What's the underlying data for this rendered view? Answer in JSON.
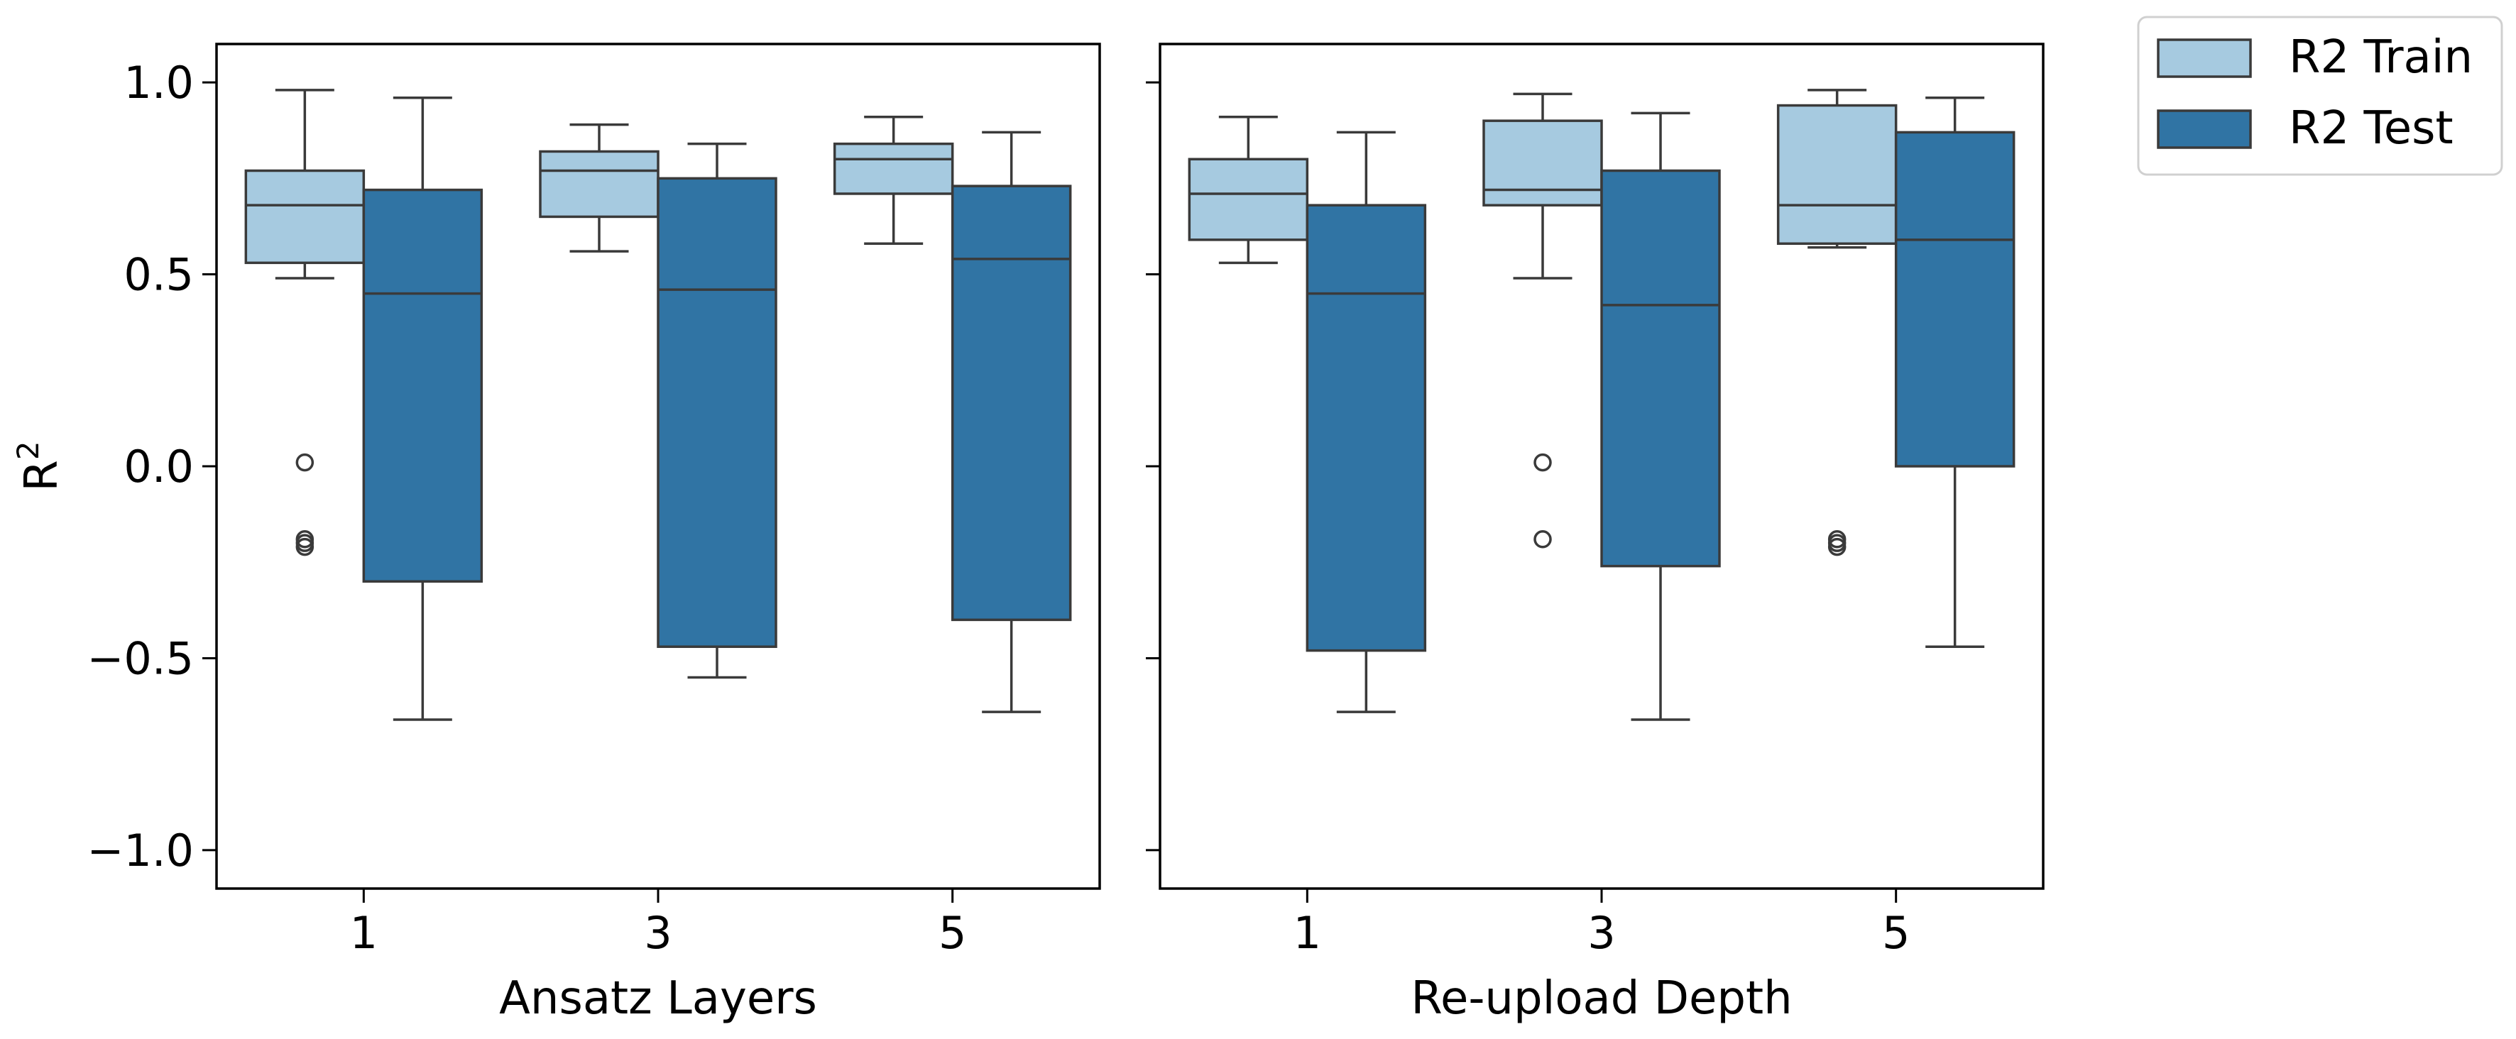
{
  "chart_data": {
    "type": "box",
    "y_label": "R",
    "y_label_superscript": "2",
    "ylim": [
      -1.1,
      1.1
    ],
    "yticks": [
      1.0,
      0.5,
      0.0,
      -0.5,
      -1.0
    ],
    "ytick_labels": [
      "1.0",
      "0.5",
      "0.0",
      "−0.5",
      "−1.0"
    ],
    "colors": {
      "R2 Train": "#a6cae0",
      "R2 Test": "#3074a4",
      "line": "#3a3a3a"
    },
    "legend": {
      "placement": "outside-top-right",
      "entries": [
        "R2 Train",
        "R2 Test"
      ]
    },
    "panels": [
      {
        "xlabel": "Ansatz Layers",
        "categories": [
          "1",
          "3",
          "5"
        ],
        "series": [
          {
            "name": "R2 Train",
            "boxes": [
              {
                "whisker_low": 0.49,
                "q1": 0.53,
                "median": 0.68,
                "q3": 0.77,
                "whisker_high": 0.98,
                "outliers": [
                  0.01,
                  -0.19,
                  -0.2,
                  -0.21
                ]
              },
              {
                "whisker_low": 0.56,
                "q1": 0.65,
                "median": 0.77,
                "q3": 0.82,
                "whisker_high": 0.89,
                "outliers": []
              },
              {
                "whisker_low": 0.58,
                "q1": 0.71,
                "median": 0.8,
                "q3": 0.84,
                "whisker_high": 0.91,
                "outliers": []
              }
            ]
          },
          {
            "name": "R2 Test",
            "boxes": [
              {
                "whisker_low": -0.66,
                "q1": -0.3,
                "median": 0.45,
                "q3": 0.72,
                "whisker_high": 0.96,
                "outliers": []
              },
              {
                "whisker_low": -0.55,
                "q1": -0.47,
                "median": 0.46,
                "q3": 0.75,
                "whisker_high": 0.84,
                "outliers": []
              },
              {
                "whisker_low": -0.64,
                "q1": -0.4,
                "median": 0.54,
                "q3": 0.73,
                "whisker_high": 0.87,
                "outliers": []
              }
            ]
          }
        ]
      },
      {
        "xlabel": "Re-upload Depth",
        "categories": [
          "1",
          "3",
          "5"
        ],
        "series": [
          {
            "name": "R2 Train",
            "boxes": [
              {
                "whisker_low": 0.53,
                "q1": 0.59,
                "median": 0.71,
                "q3": 0.8,
                "whisker_high": 0.91,
                "outliers": []
              },
              {
                "whisker_low": 0.49,
                "q1": 0.68,
                "median": 0.72,
                "q3": 0.9,
                "whisker_high": 0.97,
                "outliers": [
                  0.01,
                  -0.19
                ]
              },
              {
                "whisker_low": 0.57,
                "q1": 0.58,
                "median": 0.68,
                "q3": 0.94,
                "whisker_high": 0.98,
                "outliers": [
                  -0.19,
                  -0.2,
                  -0.21
                ]
              }
            ]
          },
          {
            "name": "R2 Test",
            "boxes": [
              {
                "whisker_low": -0.64,
                "q1": -0.48,
                "median": 0.45,
                "q3": 0.68,
                "whisker_high": 0.87,
                "outliers": []
              },
              {
                "whisker_low": -0.66,
                "q1": -0.26,
                "median": 0.42,
                "q3": 0.77,
                "whisker_high": 0.92,
                "outliers": []
              },
              {
                "whisker_low": -0.47,
                "q1": 0.0,
                "median": 0.59,
                "q3": 0.87,
                "whisker_high": 0.96,
                "outliers": []
              }
            ]
          }
        ]
      }
    ]
  }
}
